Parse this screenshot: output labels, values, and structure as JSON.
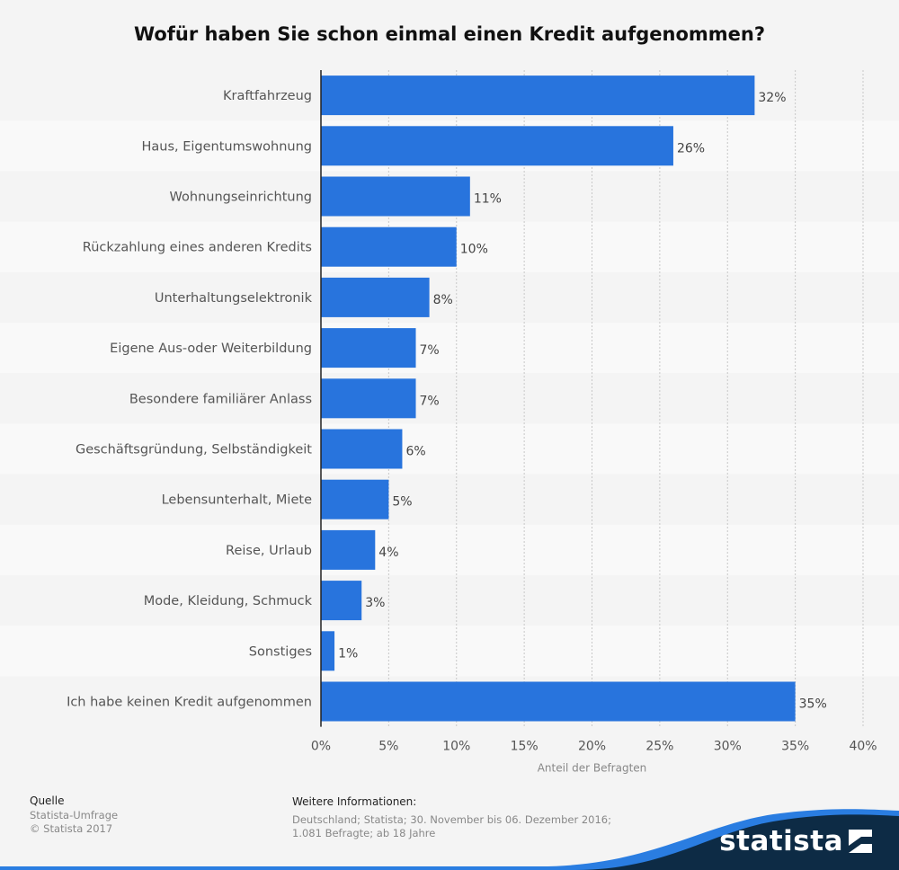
{
  "colors": {
    "bar": "#2874dd",
    "grid": "#c8c8c8",
    "axis": "#222222",
    "stripe_a": "#f4f4f4",
    "stripe_b": "#f9f9f9",
    "brand_dark": "#0d2b45",
    "brand_blue": "#2a7de1"
  },
  "chart_data": {
    "type": "bar",
    "orientation": "horizontal",
    "title": "Wofür haben Sie schon einmal einen Kredit aufgenommen?",
    "xlabel": "Anteil der Befragten",
    "ylabel": "",
    "xlim": [
      0,
      40
    ],
    "xticks": [
      0,
      5,
      10,
      15,
      20,
      25,
      30,
      35,
      40
    ],
    "xtick_labels": [
      "0%",
      "5%",
      "10%",
      "15%",
      "20%",
      "25%",
      "30%",
      "35%",
      "40%"
    ],
    "grid": "vertical dotted",
    "categories": [
      "Kraftfahrzeug",
      "Haus, Eigentumswohnung",
      "Wohnungseinrichtung",
      "Rückzahlung eines anderen Kredits",
      "Unterhaltungselektronik",
      "Eigene Aus-oder Weiterbildung",
      "Besondere familiärer Anlass",
      "Geschäftsgründung, Selbständigkeit",
      "Lebensunterhalt, Miete",
      "Reise, Urlaub",
      "Mode, Kleidung, Schmuck",
      "Sonstiges",
      "Ich habe keinen Kredit aufgenommen"
    ],
    "values": [
      32,
      26,
      11,
      10,
      8,
      7,
      7,
      6,
      5,
      4,
      3,
      1,
      35
    ],
    "value_labels": [
      "32%",
      "26%",
      "11%",
      "10%",
      "8%",
      "7%",
      "7%",
      "6%",
      "5%",
      "4%",
      "3%",
      "1%",
      "35%"
    ]
  },
  "footer": {
    "source_heading": "Quelle",
    "source_lines": [
      "Statista-Umfrage",
      "© Statista 2017"
    ],
    "info_heading": "Weitere Informationen:",
    "info_lines": [
      "Deutschland; Statista; 30. November bis 06. Dezember 2016;",
      "1.081 Befragte; ab 18 Jahre"
    ]
  },
  "brand": {
    "name": "statista",
    "icon": "statista-logo-icon"
  }
}
